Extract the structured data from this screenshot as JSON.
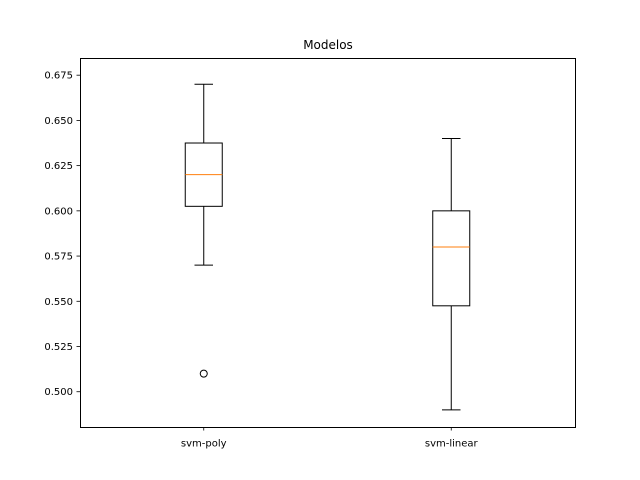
{
  "chart_data": {
    "type": "box",
    "title": "Modelos",
    "xlabel": "",
    "ylabel": "",
    "categories": [
      "svm-poly",
      "svm-linear"
    ],
    "ylim": [
      0.4805,
      0.6845
    ],
    "yticks": [
      0.5,
      0.525,
      0.55,
      0.575,
      0.6,
      0.625,
      0.65,
      0.675
    ],
    "ytick_labels": [
      "0.500",
      "0.525",
      "0.550",
      "0.575",
      "0.600",
      "0.625",
      "0.650",
      "0.675"
    ],
    "grid": false,
    "boxes": [
      {
        "label": "svm-poly",
        "whisker_low": 0.57,
        "q1": 0.6025,
        "median": 0.62,
        "q3": 0.6375,
        "whisker_high": 0.67,
        "outliers": [
          0.51
        ]
      },
      {
        "label": "svm-linear",
        "whisker_low": 0.49,
        "q1": 0.5475,
        "median": 0.58,
        "q3": 0.6,
        "whisker_high": 0.64,
        "outliers": []
      }
    ],
    "colors": {
      "box": "#000000",
      "median": "#ff7f0e",
      "outlier": "#000000"
    }
  }
}
